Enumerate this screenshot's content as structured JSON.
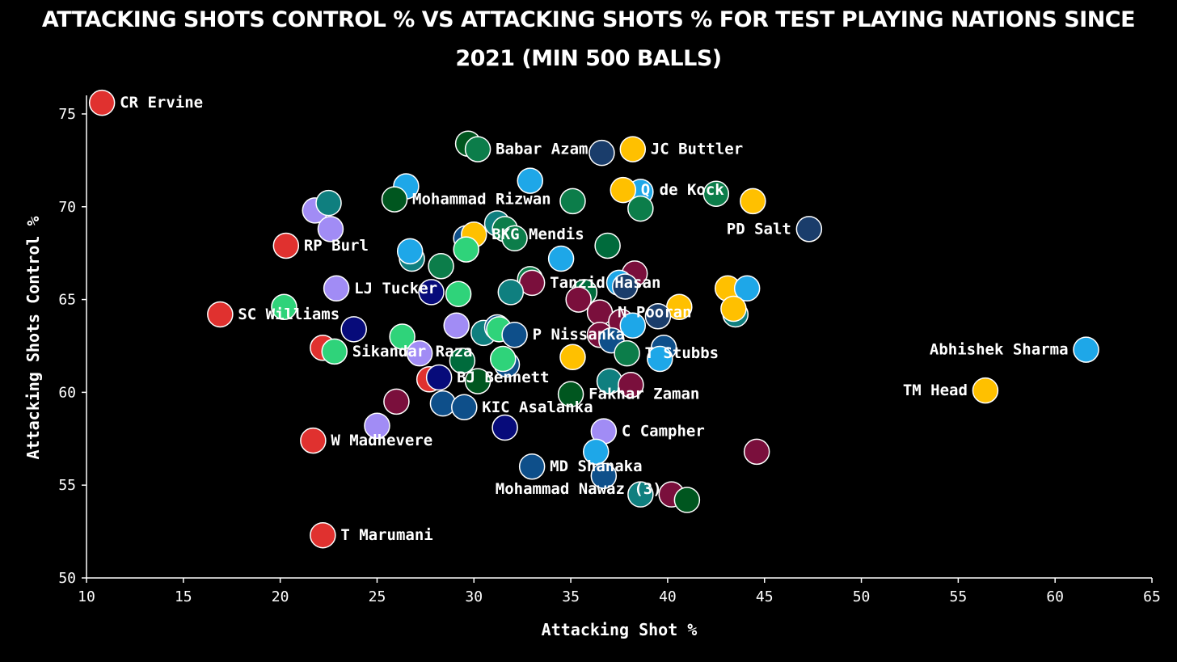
{
  "chart_data": {
    "type": "scatter",
    "title_line1": "ATTACKING SHOTS CONTROL % VS ATTACKING SHOTS % FOR TEST PLAYING NATIONS SINCE",
    "title_line2": "2021 (MIN 500 BALLS)",
    "xlabel": "Attacking Shot %",
    "ylabel": "Attacking Shots Control %",
    "xlim": [
      10,
      65
    ],
    "ylim": [
      50,
      76
    ],
    "x_ticks": [
      "10",
      "15",
      "20",
      "25",
      "30",
      "35",
      "40",
      "45",
      "50",
      "55",
      "60",
      "65"
    ],
    "y_ticks": [
      "50",
      "55",
      "60",
      "65",
      "70",
      "75"
    ],
    "colors": {
      "zimbabwe": "#e0312f",
      "pakistan_a": "#00561f",
      "pakistan_b": "#0c7d4a",
      "england_a": "#1a3d6b",
      "england_b": "#0a3161",
      "sa_a": "#006b3c",
      "sa_b": "#0b8a5a",
      "india": "#1ea7e8",
      "australia": "#ffc000",
      "afghanistan": "#0d2a8a",
      "lanka": "#0e4f8a",
      "bangladesh": "#006a4e",
      "windies": "#7a0f3c",
      "nz": "#0f7f7f",
      "ireland": "#2fd37a",
      "lavender": "#a18cf5",
      "navy": "#070b7a"
    },
    "points": [
      {
        "x": 10.8,
        "y": 75.6,
        "color": "#e0312f",
        "label": "CR Ervine"
      },
      {
        "x": 29.7,
        "y": 73.4,
        "color": "#00561f",
        "label": ""
      },
      {
        "x": 30.2,
        "y": 73.1,
        "color": "#0c7d4a",
        "label": "Babar Azam"
      },
      {
        "x": 36.6,
        "y": 72.9,
        "color": "#1a3d6b",
        "label": ""
      },
      {
        "x": 38.2,
        "y": 73.1,
        "color": "#ffc000",
        "label": "JC Buttler"
      },
      {
        "x": 32.9,
        "y": 71.4,
        "color": "#1ea7e8",
        "label": ""
      },
      {
        "x": 26.5,
        "y": 71.1,
        "color": "#1ea7e8",
        "label": ""
      },
      {
        "x": 25.9,
        "y": 70.4,
        "color": "#00561f",
        "label": "Mohammad Rizwan"
      },
      {
        "x": 38.6,
        "y": 70.8,
        "color": "#1ea7e8",
        "label": ""
      },
      {
        "x": 37.7,
        "y": 70.9,
        "color": "#ffc000",
        "label": "Q de Kock"
      },
      {
        "x": 35.1,
        "y": 70.3,
        "color": "#0c7d4a",
        "label": ""
      },
      {
        "x": 38.6,
        "y": 69.9,
        "color": "#0c7d4a",
        "label": ""
      },
      {
        "x": 42.5,
        "y": 70.7,
        "color": "#0c7d4a",
        "label": ""
      },
      {
        "x": 44.4,
        "y": 70.3,
        "color": "#ffc000",
        "label": ""
      },
      {
        "x": 47.3,
        "y": 68.8,
        "color": "#1a3d6b",
        "label": "PD Salt"
      },
      {
        "x": 21.8,
        "y": 69.8,
        "color": "#a18cf5",
        "label": ""
      },
      {
        "x": 22.5,
        "y": 70.2,
        "color": "#0f7f7f",
        "label": ""
      },
      {
        "x": 22.6,
        "y": 68.8,
        "color": "#a18cf5",
        "label": ""
      },
      {
        "x": 20.3,
        "y": 67.9,
        "color": "#e0312f",
        "label": "RP Burl"
      },
      {
        "x": 31.2,
        "y": 69.1,
        "color": "#0f7f7f",
        "label": ""
      },
      {
        "x": 31.6,
        "y": 68.8,
        "color": "#0c7d4a",
        "label": ""
      },
      {
        "x": 32.1,
        "y": 68.3,
        "color": "#0c7d4a",
        "label": ""
      },
      {
        "x": 29.6,
        "y": 68.3,
        "color": "#0e4f8a",
        "label": ""
      },
      {
        "x": 30.0,
        "y": 68.5,
        "color": "#ffc000",
        "label": "BKG Mendis"
      },
      {
        "x": 29.6,
        "y": 67.7,
        "color": "#2fd37a",
        "label": ""
      },
      {
        "x": 26.8,
        "y": 67.2,
        "color": "#0f7f7f",
        "label": ""
      },
      {
        "x": 26.7,
        "y": 67.6,
        "color": "#1ea7e8",
        "label": ""
      },
      {
        "x": 28.3,
        "y": 66.8,
        "color": "#0c7d4a",
        "label": ""
      },
      {
        "x": 34.5,
        "y": 67.2,
        "color": "#1ea7e8",
        "label": ""
      },
      {
        "x": 36.9,
        "y": 67.9,
        "color": "#006b3c",
        "label": ""
      },
      {
        "x": 38.3,
        "y": 66.4,
        "color": "#7a0f3c",
        "label": ""
      },
      {
        "x": 32.9,
        "y": 66.1,
        "color": "#0c7d4a",
        "label": ""
      },
      {
        "x": 33.0,
        "y": 65.9,
        "color": "#7a0f3c",
        "label": "Tanzid Hasan"
      },
      {
        "x": 37.5,
        "y": 65.9,
        "color": "#1ea7e8",
        "label": ""
      },
      {
        "x": 37.8,
        "y": 65.7,
        "color": "#1a3d6b",
        "label": ""
      },
      {
        "x": 35.7,
        "y": 65.4,
        "color": "#006b3c",
        "label": ""
      },
      {
        "x": 22.9,
        "y": 65.6,
        "color": "#a18cf5",
        "label": "LJ Tucker"
      },
      {
        "x": 27.8,
        "y": 65.4,
        "color": "#070b7a",
        "label": ""
      },
      {
        "x": 29.2,
        "y": 65.3,
        "color": "#2fd37a",
        "label": ""
      },
      {
        "x": 31.9,
        "y": 65.4,
        "color": "#0f7f7f",
        "label": ""
      },
      {
        "x": 20.2,
        "y": 64.6,
        "color": "#2fd37a",
        "label": ""
      },
      {
        "x": 16.9,
        "y": 64.2,
        "color": "#e0312f",
        "label": "SC Williams"
      },
      {
        "x": 35.4,
        "y": 65.0,
        "color": "#7a0f3c",
        "label": ""
      },
      {
        "x": 36.5,
        "y": 64.3,
        "color": "#7a0f3c",
        "label": "N Pooran"
      },
      {
        "x": 40.6,
        "y": 64.6,
        "color": "#ffc000",
        "label": ""
      },
      {
        "x": 39.5,
        "y": 64.1,
        "color": "#1a3d6b",
        "label": ""
      },
      {
        "x": 43.1,
        "y": 65.6,
        "color": "#ffc000",
        "label": ""
      },
      {
        "x": 44.1,
        "y": 65.6,
        "color": "#1ea7e8",
        "label": ""
      },
      {
        "x": 43.5,
        "y": 64.2,
        "color": "#0f7f7f",
        "label": ""
      },
      {
        "x": 43.4,
        "y": 64.5,
        "color": "#ffc000",
        "label": ""
      },
      {
        "x": 37.6,
        "y": 63.8,
        "color": "#7a0f3c",
        "label": ""
      },
      {
        "x": 38.2,
        "y": 63.6,
        "color": "#1ea7e8",
        "label": ""
      },
      {
        "x": 23.8,
        "y": 63.4,
        "color": "#070b7a",
        "label": ""
      },
      {
        "x": 26.3,
        "y": 63.0,
        "color": "#2fd37a",
        "label": ""
      },
      {
        "x": 29.1,
        "y": 63.6,
        "color": "#a18cf5",
        "label": ""
      },
      {
        "x": 30.5,
        "y": 63.2,
        "color": "#0f7f7f",
        "label": ""
      },
      {
        "x": 31.2,
        "y": 63.5,
        "color": "#0e4f8a",
        "label": ""
      },
      {
        "x": 31.3,
        "y": 63.4,
        "color": "#2fd37a",
        "label": ""
      },
      {
        "x": 32.1,
        "y": 63.1,
        "color": "#0e4f8a",
        "label": "P Nissanka"
      },
      {
        "x": 36.5,
        "y": 63.1,
        "color": "#7a0f3c",
        "label": ""
      },
      {
        "x": 37.1,
        "y": 62.8,
        "color": "#0e4f8a",
        "label": ""
      },
      {
        "x": 39.8,
        "y": 62.4,
        "color": "#0e4f8a",
        "label": ""
      },
      {
        "x": 37.9,
        "y": 62.1,
        "color": "#0c7d4a",
        "label": "T Stubbs"
      },
      {
        "x": 39.6,
        "y": 61.8,
        "color": "#1ea7e8",
        "label": ""
      },
      {
        "x": 22.2,
        "y": 62.4,
        "color": "#e0312f",
        "label": ""
      },
      {
        "x": 22.8,
        "y": 62.2,
        "color": "#2fd37a",
        "label": "Sikandar Raza"
      },
      {
        "x": 27.2,
        "y": 62.1,
        "color": "#a18cf5",
        "label": ""
      },
      {
        "x": 29.4,
        "y": 61.7,
        "color": "#006b3c",
        "label": ""
      },
      {
        "x": 31.7,
        "y": 61.5,
        "color": "#0e4f8a",
        "label": ""
      },
      {
        "x": 31.5,
        "y": 61.8,
        "color": "#2fd37a",
        "label": ""
      },
      {
        "x": 35.1,
        "y": 61.9,
        "color": "#ffc000",
        "label": ""
      },
      {
        "x": 56.4,
        "y": 60.1,
        "color": "#ffc000",
        "label": "TM Head"
      },
      {
        "x": 61.6,
        "y": 62.3,
        "color": "#1ea7e8",
        "label": "Abhishek Sharma"
      },
      {
        "x": 27.7,
        "y": 60.7,
        "color": "#e0312f",
        "label": ""
      },
      {
        "x": 28.2,
        "y": 60.8,
        "color": "#070b7a",
        "label": "BJ Bennett"
      },
      {
        "x": 30.2,
        "y": 60.6,
        "color": "#00561f",
        "label": ""
      },
      {
        "x": 37.0,
        "y": 60.6,
        "color": "#0f7f7f",
        "label": ""
      },
      {
        "x": 38.1,
        "y": 60.4,
        "color": "#7a0f3c",
        "label": ""
      },
      {
        "x": 35.0,
        "y": 59.9,
        "color": "#00561f",
        "label": "Fakhar Zaman"
      },
      {
        "x": 26.0,
        "y": 59.5,
        "color": "#7a0f3c",
        "label": ""
      },
      {
        "x": 28.4,
        "y": 59.4,
        "color": "#0e4f8a",
        "label": ""
      },
      {
        "x": 29.5,
        "y": 59.2,
        "color": "#0e4f8a",
        "label": "KIC Asalanka"
      },
      {
        "x": 25.0,
        "y": 58.2,
        "color": "#a18cf5",
        "label": ""
      },
      {
        "x": 31.6,
        "y": 58.1,
        "color": "#070b7a",
        "label": ""
      },
      {
        "x": 36.7,
        "y": 57.9,
        "color": "#a18cf5",
        "label": "C Campher"
      },
      {
        "x": 21.7,
        "y": 57.4,
        "color": "#e0312f",
        "label": "W Madhevere"
      },
      {
        "x": 44.6,
        "y": 56.8,
        "color": "#7a0f3c",
        "label": ""
      },
      {
        "x": 36.3,
        "y": 56.8,
        "color": "#1ea7e8",
        "label": ""
      },
      {
        "x": 33.0,
        "y": 56.0,
        "color": "#0e4f8a",
        "label": "MD Shanaka"
      },
      {
        "x": 36.7,
        "y": 55.5,
        "color": "#0e4f8a",
        "label": ""
      },
      {
        "x": 38.6,
        "y": 54.5,
        "color": "#0f7f7f",
        "label": ""
      },
      {
        "x": 40.2,
        "y": 54.5,
        "color": "#7a0f3c",
        "label": "Mohammad Nawaz (3)"
      },
      {
        "x": 41.0,
        "y": 54.2,
        "color": "#00561f",
        "label": ""
      },
      {
        "x": 22.2,
        "y": 52.3,
        "color": "#e0312f",
        "label": "T Marumani"
      }
    ]
  }
}
